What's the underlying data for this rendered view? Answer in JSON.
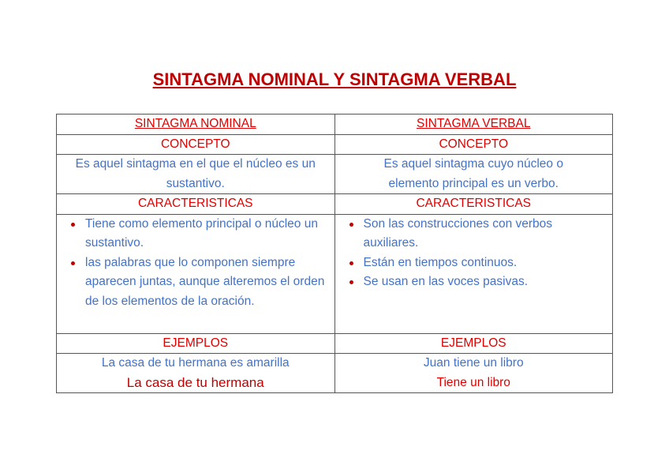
{
  "title": "SINTAGMA NOMINAL Y SINTAGMA VERBAL",
  "columns": [
    {
      "heading": "SINTAGMA NOMINAL",
      "concept_label": "CONCEPTO",
      "concept": "Es aquel sintagma en el que el núcleo es un sustantivo.",
      "characteristics_label": "CARACTERISTICAS",
      "characteristics": [
        "Tiene como elemento principal o núcleo un sustantivo.",
        "las palabras que lo componen siempre aparecen juntas, aunque alteremos el orden de los elementos de la oración."
      ],
      "examples_label": "EJEMPLOS",
      "example": "La casa de tu hermana es amarilla",
      "example_highlight": "La casa de tu hermana"
    },
    {
      "heading": "SINTAGMA VERBAL",
      "concept_label": "CONCEPTO",
      "concept": "Es aquel sintagma cuyo núcleo o elemento principal es un verbo.",
      "characteristics_label": "CARACTERISTICAS",
      "characteristics": [
        "Son las construcciones con verbos auxiliares.",
        "Están en tiempos continuos.",
        "Se usan en las voces pasivas."
      ],
      "examples_label": "EJEMPLOS",
      "example": "Juan tiene un libro",
      "example_highlight": "Tiene un libro"
    }
  ],
  "colors": {
    "title": "#c00000",
    "heading": "#e00000",
    "body": "#4472c4",
    "bullet": "#c00000"
  }
}
